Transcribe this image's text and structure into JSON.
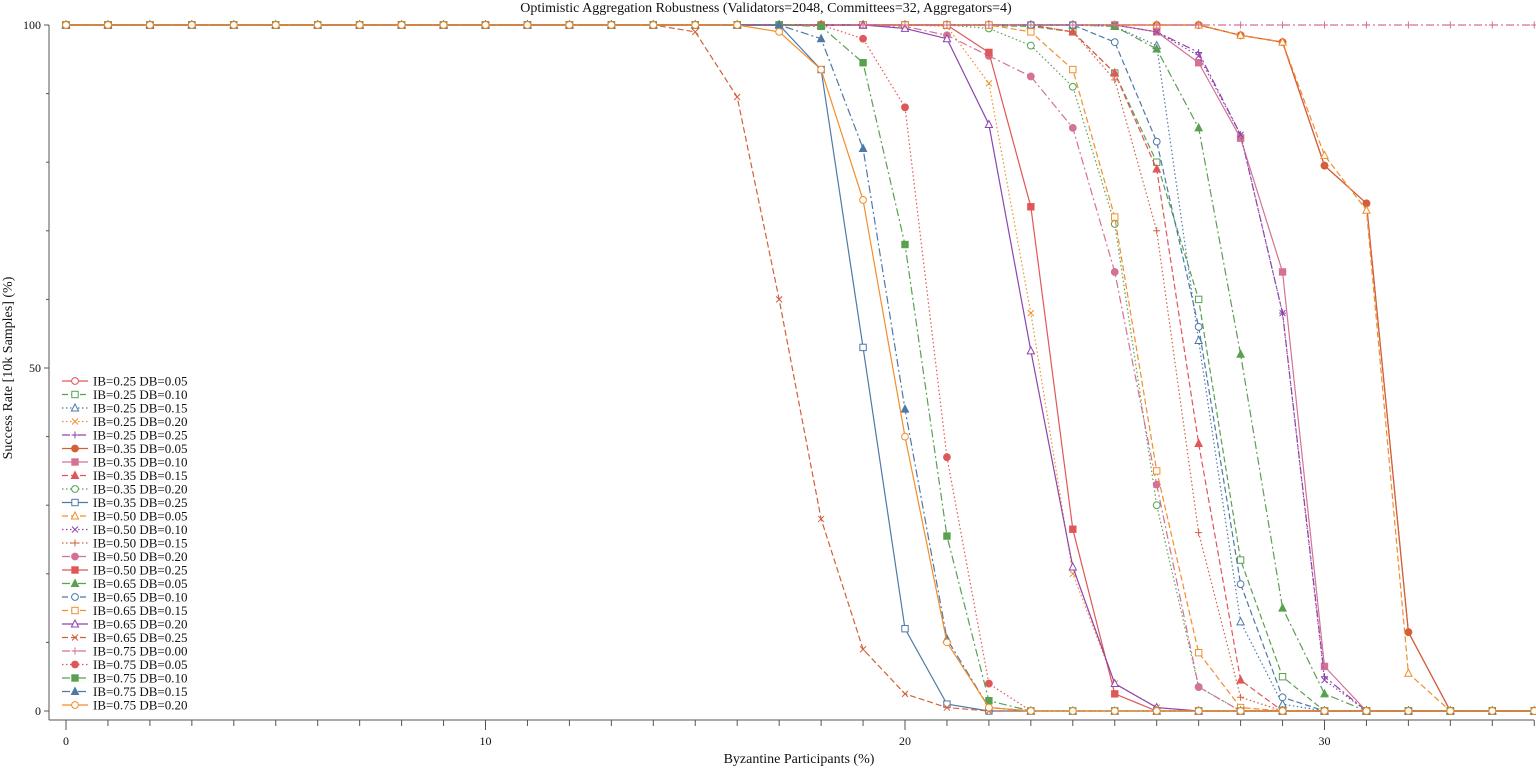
{
  "chart_data": {
    "type": "line",
    "title": "Optimistic Aggregation Robustness (Validators=2048, Committees=32, Aggregators=4)",
    "xlabel": "Byzantine Participants (%)",
    "ylabel": "Success Rate [10k Samples] (%)",
    "xlim": [
      0,
      35
    ],
    "ylim": [
      0,
      100
    ],
    "x_ticks": [
      0,
      10,
      20,
      30
    ],
    "y_ticks": [
      0,
      50,
      100
    ],
    "legend_position": "lower-left",
    "x": [
      0,
      1,
      2,
      3,
      4,
      5,
      6,
      7,
      8,
      9,
      10,
      11,
      12,
      13,
      14,
      15,
      16,
      17,
      18,
      19,
      20,
      21,
      22,
      23,
      24,
      25,
      26,
      27,
      28,
      29,
      30,
      31,
      32,
      33,
      34,
      35
    ],
    "series": [
      {
        "name": "IB=0.25 DB=0.05",
        "color": "#e15759",
        "dash": "solid",
        "marker": "circle",
        "fill": false,
        "values": [
          100,
          100,
          100,
          100,
          100,
          100,
          100,
          100,
          100,
          100,
          100,
          100,
          100,
          100,
          100,
          100,
          100,
          100,
          100,
          100,
          100,
          100,
          100,
          100,
          100,
          100,
          100,
          100,
          98.5,
          97.5,
          79.5,
          74,
          11.5,
          0,
          0,
          0
        ]
      },
      {
        "name": "IB=0.25 DB=0.10",
        "color": "#59a14f",
        "dash": "dashed",
        "marker": "square",
        "fill": false,
        "values": [
          100,
          100,
          100,
          100,
          100,
          100,
          100,
          100,
          100,
          100,
          100,
          100,
          100,
          100,
          100,
          100,
          100,
          100,
          100,
          100,
          100,
          100,
          99.9,
          99.8,
          99,
          93,
          80,
          60,
          22,
          5,
          0,
          0,
          0,
          0,
          0,
          0
        ]
      },
      {
        "name": "IB=0.25 DB=0.15",
        "color": "#4e79a7",
        "dash": "dotted",
        "marker": "triangle",
        "fill": false,
        "values": [
          100,
          100,
          100,
          100,
          100,
          100,
          100,
          100,
          100,
          100,
          100,
          100,
          100,
          100,
          100,
          100,
          100,
          100,
          100,
          100,
          100,
          100,
          100,
          100,
          100,
          99.8,
          97,
          54,
          13,
          1,
          0,
          0,
          0,
          0,
          0,
          0
        ]
      },
      {
        "name": "IB=0.25 DB=0.20",
        "color": "#f28e2b",
        "dash": "dotted",
        "marker": "x",
        "fill": false,
        "values": [
          100,
          100,
          100,
          100,
          100,
          100,
          100,
          100,
          100,
          100,
          100,
          100,
          100,
          100,
          100,
          100,
          100,
          100,
          100,
          100,
          100,
          99.8,
          91.5,
          58,
          20,
          4,
          0.5,
          0,
          0,
          0,
          0,
          0,
          0,
          0,
          0,
          0
        ]
      },
      {
        "name": "IB=0.25 DB=0.25",
        "color": "#8e44ad",
        "dash": "dashdot",
        "marker": "plus",
        "fill": false,
        "values": [
          100,
          100,
          100,
          100,
          100,
          100,
          100,
          100,
          100,
          100,
          100,
          100,
          100,
          100,
          100,
          100,
          100,
          100,
          100,
          100,
          100,
          100,
          100,
          100,
          100,
          100,
          99,
          96,
          84,
          58,
          5,
          0,
          0,
          0,
          0,
          0
        ]
      },
      {
        "name": "IB=0.35 DB=0.05",
        "color": "#d2603a",
        "dash": "solid",
        "marker": "circle",
        "fill": true,
        "values": [
          100,
          100,
          100,
          100,
          100,
          100,
          100,
          100,
          100,
          100,
          100,
          100,
          100,
          100,
          100,
          100,
          100,
          100,
          100,
          100,
          100,
          100,
          100,
          100,
          100,
          100,
          100,
          100,
          98.5,
          97.5,
          79.5,
          74,
          11.5,
          0,
          0,
          0
        ]
      },
      {
        "name": "IB=0.35 DB=0.10",
        "color": "#d37295",
        "dash": "solid",
        "marker": "square",
        "fill": true,
        "values": [
          100,
          100,
          100,
          100,
          100,
          100,
          100,
          100,
          100,
          100,
          100,
          100,
          100,
          100,
          100,
          100,
          100,
          100,
          100,
          100,
          100,
          100,
          100,
          100,
          100,
          100,
          99,
          94.5,
          83.5,
          64,
          6.5,
          0,
          0,
          0,
          0,
          0
        ]
      },
      {
        "name": "IB=0.35 DB=0.15",
        "color": "#e15759",
        "dash": "dashed",
        "marker": "triangle",
        "fill": true,
        "values": [
          100,
          100,
          100,
          100,
          100,
          100,
          100,
          100,
          100,
          100,
          100,
          100,
          100,
          100,
          100,
          100,
          100,
          100,
          100,
          100,
          100,
          100,
          100,
          100,
          99,
          93,
          79,
          39,
          4.5,
          0,
          0,
          0,
          0,
          0,
          0,
          0
        ]
      },
      {
        "name": "IB=0.35 DB=0.20",
        "color": "#59a14f",
        "dash": "dotted",
        "marker": "circle",
        "fill": false,
        "values": [
          100,
          100,
          100,
          100,
          100,
          100,
          100,
          100,
          100,
          100,
          100,
          100,
          100,
          100,
          100,
          100,
          100,
          100,
          100,
          100,
          100,
          100,
          99.5,
          97,
          91,
          71,
          30,
          3.5,
          0,
          0,
          0,
          0,
          0,
          0,
          0,
          0
        ]
      },
      {
        "name": "IB=0.35 DB=0.25",
        "color": "#4e79a7",
        "dash": "solid",
        "marker": "square",
        "fill": false,
        "values": [
          100,
          100,
          100,
          100,
          100,
          100,
          100,
          100,
          100,
          100,
          100,
          100,
          100,
          100,
          100,
          100,
          100,
          100,
          93.5,
          53,
          12,
          1,
          0,
          0,
          0,
          0,
          0,
          0,
          0,
          0,
          0,
          0,
          0,
          0,
          0,
          0
        ]
      },
      {
        "name": "IB=0.50 DB=0.05",
        "color": "#f28e2b",
        "dash": "dashed",
        "marker": "triangle",
        "fill": false,
        "values": [
          100,
          100,
          100,
          100,
          100,
          100,
          100,
          100,
          100,
          100,
          100,
          100,
          100,
          100,
          100,
          100,
          100,
          100,
          100,
          100,
          100,
          100,
          100,
          100,
          100,
          100,
          100,
          100,
          98.5,
          97.5,
          81,
          73,
          5.5,
          0,
          0,
          0
        ]
      },
      {
        "name": "IB=0.50 DB=0.10",
        "color": "#8e44ad",
        "dash": "dotted",
        "marker": "x",
        "fill": false,
        "values": [
          100,
          100,
          100,
          100,
          100,
          100,
          100,
          100,
          100,
          100,
          100,
          100,
          100,
          100,
          100,
          100,
          100,
          100,
          100,
          100,
          100,
          100,
          100,
          100,
          100,
          100,
          99,
          95.5,
          84,
          58,
          4.5,
          0,
          0,
          0,
          0,
          0
        ]
      },
      {
        "name": "IB=0.50 DB=0.15",
        "color": "#d2603a",
        "dash": "dotted",
        "marker": "plus",
        "fill": false,
        "values": [
          100,
          100,
          100,
          100,
          100,
          100,
          100,
          100,
          100,
          100,
          100,
          100,
          100,
          100,
          100,
          100,
          100,
          100,
          100,
          100,
          100,
          100,
          100,
          100,
          99,
          92,
          70,
          26,
          2,
          0,
          0,
          0,
          0,
          0,
          0,
          0
        ]
      },
      {
        "name": "IB=0.50 DB=0.20",
        "color": "#d37295",
        "dash": "dashdot",
        "marker": "circle",
        "fill": true,
        "values": [
          100,
          100,
          100,
          100,
          100,
          100,
          100,
          100,
          100,
          100,
          100,
          100,
          100,
          100,
          100,
          100,
          100,
          100,
          100,
          100,
          99.8,
          98.5,
          95.5,
          92.5,
          85,
          64,
          33,
          3.5,
          0,
          0,
          0,
          0,
          0,
          0,
          0,
          0
        ]
      },
      {
        "name": "IB=0.50 DB=0.25",
        "color": "#e15759",
        "dash": "solid",
        "marker": "square",
        "fill": true,
        "values": [
          100,
          100,
          100,
          100,
          100,
          100,
          100,
          100,
          100,
          100,
          100,
          100,
          100,
          100,
          100,
          100,
          100,
          100,
          100,
          100,
          100,
          100,
          96,
          73.5,
          26.5,
          2.5,
          0,
          0,
          0,
          0,
          0,
          0,
          0,
          0,
          0,
          0
        ]
      },
      {
        "name": "IB=0.65 DB=0.05",
        "color": "#59a14f",
        "dash": "dashdot",
        "marker": "triangle",
        "fill": true,
        "values": [
          100,
          100,
          100,
          100,
          100,
          100,
          100,
          100,
          100,
          100,
          100,
          100,
          100,
          100,
          100,
          100,
          100,
          100,
          100,
          100,
          100,
          100,
          100,
          100,
          100,
          99.8,
          96.5,
          85,
          52,
          15,
          2.5,
          0,
          0,
          0,
          0,
          0
        ]
      },
      {
        "name": "IB=0.65 DB=0.10",
        "color": "#4e79a7",
        "dash": "dashed",
        "marker": "circle",
        "fill": false,
        "values": [
          100,
          100,
          100,
          100,
          100,
          100,
          100,
          100,
          100,
          100,
          100,
          100,
          100,
          100,
          100,
          100,
          100,
          100,
          100,
          100,
          100,
          100,
          100,
          100,
          100,
          97.5,
          83,
          56,
          18.5,
          2,
          0,
          0,
          0,
          0,
          0,
          0
        ]
      },
      {
        "name": "IB=0.65 DB=0.15",
        "color": "#f28e2b",
        "dash": "dashed",
        "marker": "square",
        "fill": false,
        "values": [
          100,
          100,
          100,
          100,
          100,
          100,
          100,
          100,
          100,
          100,
          100,
          100,
          100,
          100,
          100,
          100,
          100,
          100,
          100,
          100,
          100,
          100,
          100,
          99,
          93.5,
          72,
          35,
          8.5,
          0.5,
          0,
          0,
          0,
          0,
          0,
          0,
          0
        ]
      },
      {
        "name": "IB=0.65 DB=0.20",
        "color": "#8e44ad",
        "dash": "solid",
        "marker": "triangle",
        "fill": false,
        "values": [
          100,
          100,
          100,
          100,
          100,
          100,
          100,
          100,
          100,
          100,
          100,
          100,
          100,
          100,
          100,
          100,
          100,
          100,
          100,
          100,
          99.5,
          98,
          85.5,
          52.5,
          21,
          4,
          0.5,
          0,
          0,
          0,
          0,
          0,
          0,
          0,
          0,
          0
        ]
      },
      {
        "name": "IB=0.65 DB=0.25",
        "color": "#d2603a",
        "dash": "dashed",
        "marker": "x",
        "fill": false,
        "values": [
          100,
          100,
          100,
          100,
          100,
          100,
          100,
          100,
          100,
          100,
          100,
          100,
          100,
          100,
          100,
          99,
          89.5,
          60,
          28,
          9,
          2.5,
          0.5,
          0,
          0,
          0,
          0,
          0,
          0,
          0,
          0,
          0,
          0,
          0,
          0,
          0,
          0
        ]
      },
      {
        "name": "IB=0.75 DB=0.00",
        "color": "#d37295",
        "dash": "dashdot",
        "marker": "plus",
        "fill": false,
        "values": [
          100,
          100,
          100,
          100,
          100,
          100,
          100,
          100,
          100,
          100,
          100,
          100,
          100,
          100,
          100,
          100,
          100,
          100,
          100,
          100,
          100,
          100,
          100,
          100,
          100,
          100,
          100,
          100,
          100,
          100,
          100,
          100,
          100,
          100,
          100,
          100
        ]
      },
      {
        "name": "IB=0.75 DB=0.05",
        "color": "#e15759",
        "dash": "dotted",
        "marker": "circle",
        "fill": true,
        "values": [
          100,
          100,
          100,
          100,
          100,
          100,
          100,
          100,
          100,
          100,
          100,
          100,
          100,
          100,
          100,
          100,
          100,
          100,
          100,
          98,
          88,
          37,
          4,
          0,
          0,
          0,
          0,
          0,
          0,
          0,
          0,
          0,
          0,
          0,
          0,
          0
        ]
      },
      {
        "name": "IB=0.75 DB=0.10",
        "color": "#59a14f",
        "dash": "dashdot",
        "marker": "square",
        "fill": true,
        "values": [
          100,
          100,
          100,
          100,
          100,
          100,
          100,
          100,
          100,
          100,
          100,
          100,
          100,
          100,
          100,
          100,
          100,
          100,
          99.8,
          94.5,
          68,
          25.5,
          1.5,
          0,
          0,
          0,
          0,
          0,
          0,
          0,
          0,
          0,
          0,
          0,
          0,
          0
        ]
      },
      {
        "name": "IB=0.75 DB=0.15",
        "color": "#4e79a7",
        "dash": "dashdot",
        "marker": "triangle",
        "fill": true,
        "values": [
          100,
          100,
          100,
          100,
          100,
          100,
          100,
          100,
          100,
          100,
          100,
          100,
          100,
          100,
          100,
          100,
          100,
          100,
          98,
          82,
          44,
          10.5,
          0.5,
          0,
          0,
          0,
          0,
          0,
          0,
          0,
          0,
          0,
          0,
          0,
          0,
          0
        ]
      },
      {
        "name": "IB=0.75 DB=0.20",
        "color": "#f28e2b",
        "dash": "solid",
        "marker": "circle",
        "fill": false,
        "values": [
          100,
          100,
          100,
          100,
          100,
          100,
          100,
          100,
          100,
          100,
          100,
          100,
          100,
          100,
          100,
          100,
          100,
          99,
          93.5,
          74.5,
          40,
          10,
          0.5,
          0,
          0,
          0,
          0,
          0,
          0,
          0,
          0,
          0,
          0,
          0,
          0,
          0
        ]
      }
    ]
  }
}
